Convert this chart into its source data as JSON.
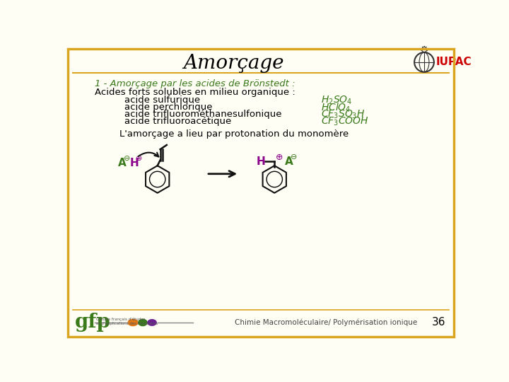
{
  "title": "Amorçage",
  "bg_color": "#FEFEF5",
  "border_color": "#DAA520",
  "green_color": "#3A7A1A",
  "purple_color": "#8B008B",
  "text_color": "#000000",
  "iupac_color": "#CC0000",
  "heading": "1 - Amorçage par les acides de Brönstedt :",
  "subheading": "Acides forts solubles en milieu organique :",
  "acids": [
    "acide sulfurique",
    "acide perchlorique",
    "acide trifluorométhanesulfonique",
    "acide trifluoroacétique"
  ],
  "formulas_tex": [
    "$H_2SO_4$",
    "$HClO_4$",
    "$CF_3SO_3H$",
    "$CF_3COOH$"
  ],
  "protonation_text": "L'amorçage a lieu par protonation du monomère",
  "footer_left": "gfp",
  "footer_center": "Chimie Macromoléculaire/ Polymérisation ionique",
  "footer_page": "36"
}
